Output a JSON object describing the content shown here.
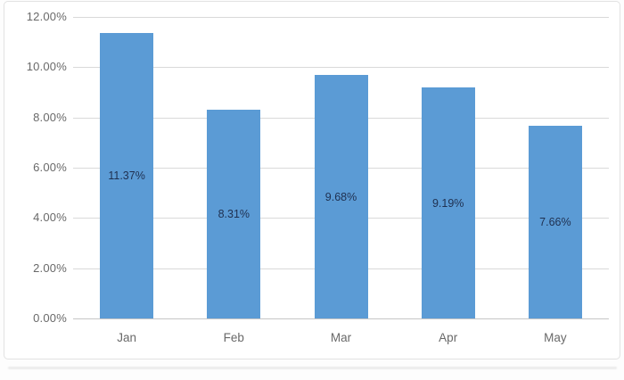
{
  "chart_data": {
    "type": "bar",
    "categories": [
      "Jan",
      "Feb",
      "Mar",
      "Apr",
      "May"
    ],
    "values": [
      11.37,
      8.31,
      9.68,
      9.19,
      7.66
    ],
    "data_labels": [
      "11.37%",
      "8.31%",
      "9.68%",
      "9.19%",
      "7.66%"
    ],
    "data_label_position": "inside-center",
    "title": "",
    "xlabel": "",
    "ylabel": "",
    "ylim": [
      0,
      12
    ],
    "ytick_step": 2,
    "ytick_labels": [
      "0.00%",
      "2.00%",
      "4.00%",
      "6.00%",
      "8.00%",
      "10.00%",
      "12.00%"
    ],
    "grid": true,
    "legend": false,
    "colors": {
      "bar_fill": "#5b9bd5",
      "data_label_text": "#1f3050",
      "axis_text": "#696969",
      "gridline": "#d9d9d9",
      "axis_line": "#c6c6c6",
      "frame_border": "#e2e2e2",
      "background": "#ffffff"
    }
  }
}
